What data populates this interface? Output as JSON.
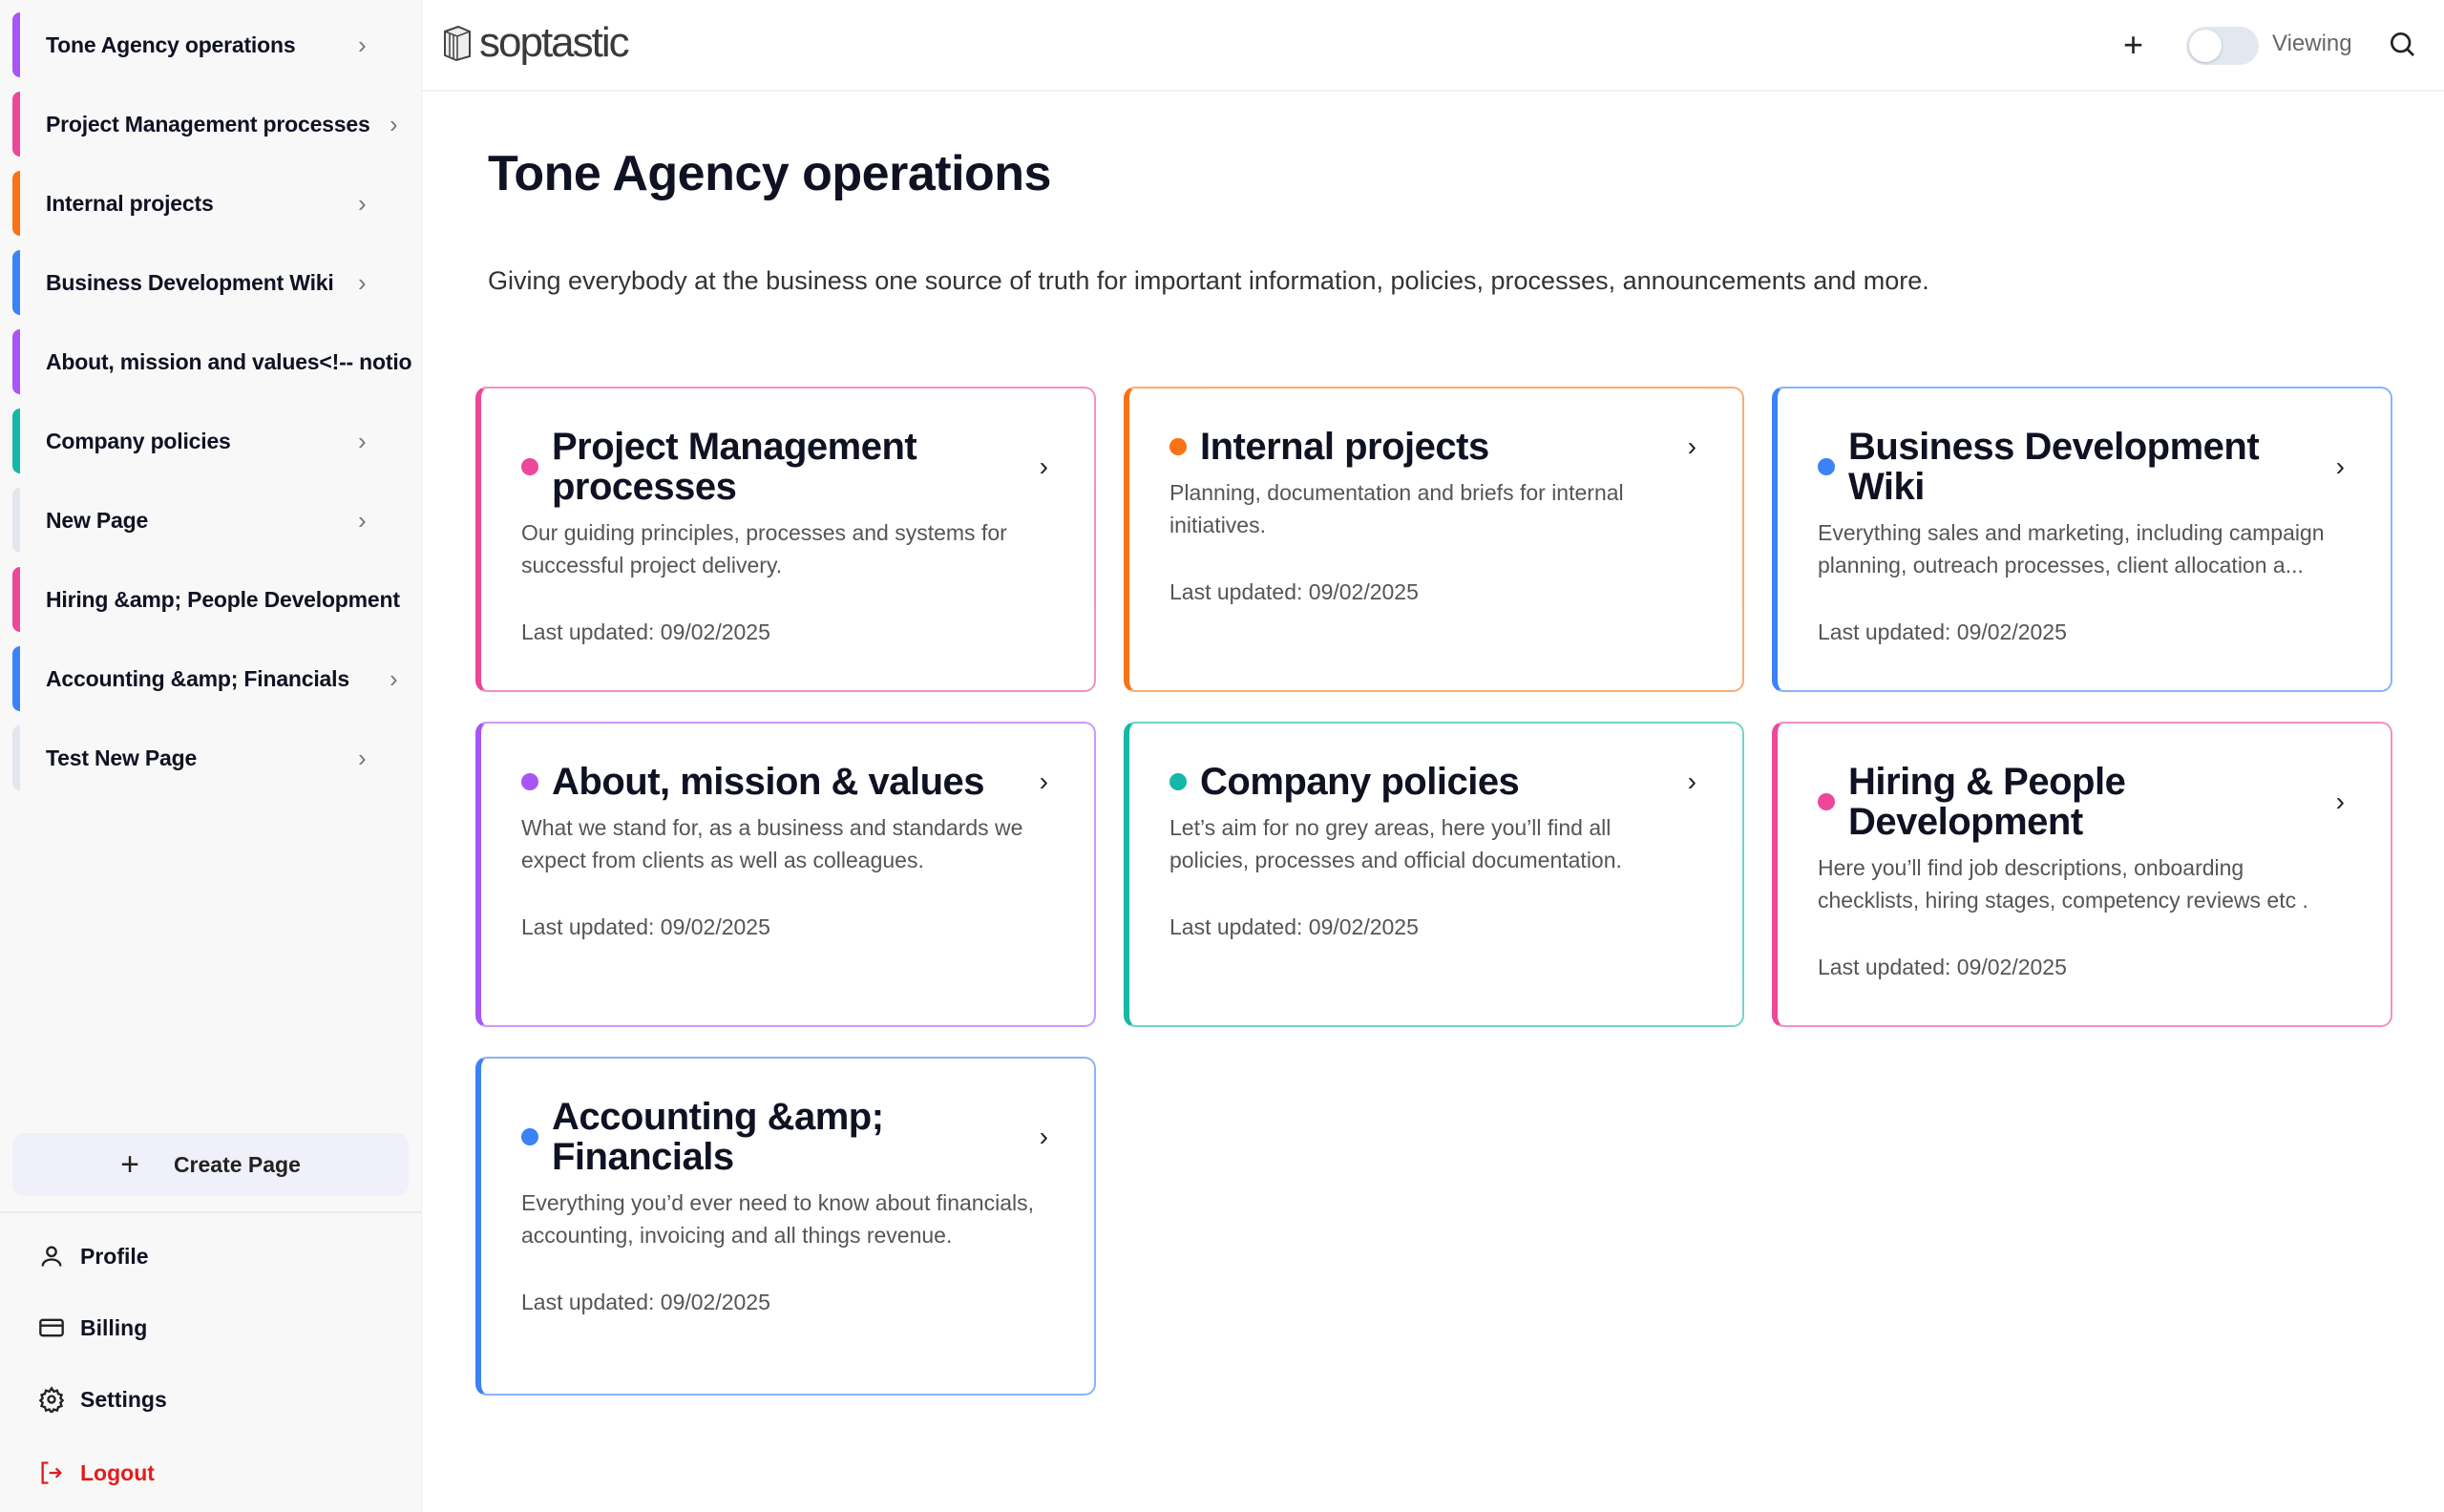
{
  "sidebar": {
    "items": [
      {
        "label": "Tone Agency operations",
        "color": "#a855f7",
        "chevron": true
      },
      {
        "label": "Project Management processes",
        "color": "#ec4899",
        "chevron": true
      },
      {
        "label": "Internal projects",
        "color": "#f97316",
        "chevron": true
      },
      {
        "label": "Business Development Wiki",
        "color": "#3b82f6",
        "chevron": true
      },
      {
        "label": "About, mission and values<!-- notio",
        "color": "#a855f7",
        "chevron": false
      },
      {
        "label": "Company policies",
        "color": "#14b8a6",
        "chevron": true
      },
      {
        "label": "New Page",
        "color": "#e2e6ee",
        "chevron": true
      },
      {
        "label": "Hiring &amp; People Development",
        "color": "#ec4899",
        "chevron": false
      },
      {
        "label": "Accounting &amp; Financials",
        "color": "#3b82f6",
        "chevron": true
      },
      {
        "label": "Test New Page",
        "color": "#e2e6ee",
        "chevron": true
      }
    ],
    "create_page": "Create Page",
    "footer": {
      "profile": "Profile",
      "billing": "Billing",
      "settings": "Settings",
      "logout": "Logout"
    }
  },
  "header": {
    "logo": "soptastic",
    "toggle_label": "Viewing",
    "toggle_on": false
  },
  "main": {
    "title": "Tone Agency operations",
    "description": "Giving everybody at the business one source of truth for important information, policies, processes, announcements and more.",
    "cards": [
      {
        "title": "Project Management processes",
        "description": "Our guiding principles, processes and systems for successful project delivery.",
        "updated": "Last updated: 09/02/2025",
        "color": "#ec4899"
      },
      {
        "title": "Internal projects",
        "description": "Planning, documentation and briefs for internal initiatives.",
        "updated": "Last updated: 09/02/2025",
        "color": "#f97316"
      },
      {
        "title": "Business Development Wiki",
        "description": "Everything sales and marketing, including campaign planning, outreach processes, client allocation a...",
        "updated": "Last updated: 09/02/2025",
        "color": "#3b82f6"
      },
      {
        "title": "About, mission & values",
        "description": "What we stand for, as a business and standards we expect from clients as well as colleagues.",
        "updated": "Last updated: 09/02/2025",
        "color": "#a855f7"
      },
      {
        "title": "Company policies",
        "description": "Let’s aim for no grey areas, here you’ll find all policies, processes and official documentation.",
        "updated": "Last updated: 09/02/2025",
        "color": "#14b8a6"
      },
      {
        "title": "Hiring & People Development",
        "description": "Here you’ll find job descriptions, onboarding checklists, hiring stages, competency reviews etc .",
        "updated": "Last updated: 09/02/2025",
        "color": "#ec4899"
      },
      {
        "title": "Accounting &amp; Financials",
        "description": "Everything you’d ever need to know about financials, accounting, invoicing and all things revenue.",
        "updated": "Last updated: 09/02/2025",
        "color": "#3b82f6"
      }
    ]
  }
}
